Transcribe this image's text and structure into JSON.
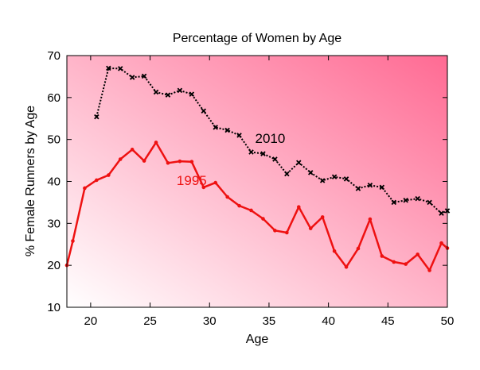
{
  "chart_data": {
    "type": "line",
    "title": "Percentage of Women by Age",
    "xlabel": "Age",
    "ylabel": "% Female Runners by Age",
    "xlim": [
      18,
      50
    ],
    "ylim": [
      10,
      70
    ],
    "xticks": [
      20,
      25,
      30,
      35,
      40,
      45,
      50
    ],
    "yticks": [
      10,
      20,
      30,
      40,
      50,
      60,
      70
    ],
    "grid": false,
    "background": "white-to-pink diagonal gradient",
    "series": [
      {
        "name": "2010",
        "color": "#000000",
        "linestyle": "dotted",
        "marker": "x",
        "x": [
          20.5,
          21.5,
          22.5,
          23.5,
          24.5,
          25.5,
          26.5,
          27.5,
          28.5,
          29.5,
          30.5,
          31.5,
          32.5,
          33.5,
          34.5,
          35.5,
          36.5,
          37.5,
          38.5,
          39.5,
          40.5,
          41.5,
          42.5,
          43.5,
          44.5,
          45.5,
          46.5,
          47.5,
          48.5,
          49.5,
          50
        ],
        "y": [
          55.4,
          67,
          66.9,
          64.8,
          65.1,
          61.3,
          60.6,
          61.7,
          60.8,
          56.8,
          52.9,
          52.2,
          51,
          47,
          46.6,
          45.3,
          41.8,
          44.5,
          42.1,
          40.2,
          41.1,
          40.6,
          38.3,
          39.1,
          38.6,
          35,
          35.5,
          35.9,
          35,
          32.4,
          33
        ]
      },
      {
        "name": "1995",
        "color": "#ee1111",
        "linestyle": "solid",
        "marker": "dot",
        "x": [
          18,
          18.5,
          19.5,
          20.5,
          21.5,
          22.5,
          23.5,
          24.5,
          25.5,
          26.5,
          27.5,
          28.5,
          29.5,
          30.5,
          31.5,
          32.5,
          33.5,
          34.5,
          35.5,
          36.5,
          37.5,
          38.5,
          39.5,
          40.5,
          41.5,
          42.5,
          43.5,
          44.5,
          45.5,
          46.5,
          47.5,
          48.5,
          49.5,
          50
        ],
        "y": [
          20,
          25.8,
          38.4,
          40.3,
          41.5,
          45.3,
          47.6,
          44.9,
          49.3,
          44.4,
          44.8,
          44.7,
          38.6,
          39.7,
          36.3,
          34.2,
          33.1,
          31.1,
          28.3,
          27.8,
          33.9,
          28.8,
          31.5,
          23.4,
          19.6,
          24,
          31,
          22.2,
          20.8,
          20.3,
          22.6,
          18.8,
          25.3,
          24.1
        ]
      }
    ],
    "annotations": [
      {
        "text": "2010",
        "x": 35.1,
        "y": 50,
        "color": "#000000"
      },
      {
        "text": "1995",
        "x": 28.5,
        "y": 40,
        "color": "#ee1111"
      }
    ]
  }
}
